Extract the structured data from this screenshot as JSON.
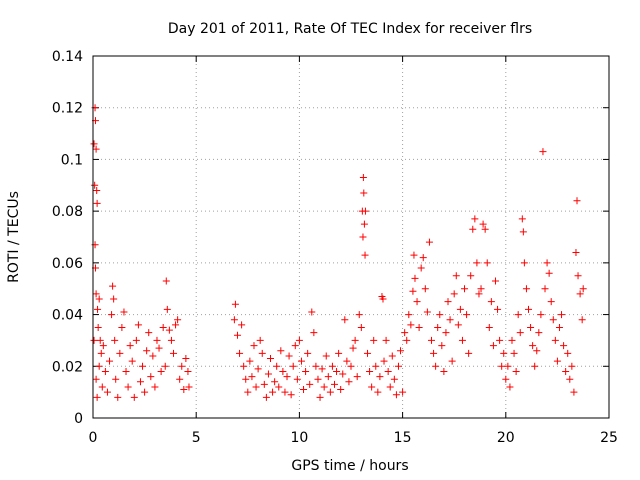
{
  "chart_data": {
    "type": "scatter",
    "title": "Day 201 of 2011, Rate Of TEC Index for receiver flrs",
    "xlabel": "GPS time / hours",
    "ylabel": "ROTI / TECUs",
    "xlim": [
      0,
      25
    ],
    "ylim": [
      0,
      0.14
    ],
    "xticks": [
      0,
      5,
      10,
      15,
      20,
      25
    ],
    "xtick_labels": [
      "0",
      "5",
      "10",
      "15",
      "20",
      "25"
    ],
    "yticks": [
      0,
      0.02,
      0.04,
      0.06,
      0.08,
      0.1,
      0.12,
      0.14
    ],
    "ytick_labels": [
      "0",
      "0.02",
      "0.04",
      "0.06",
      "0.08",
      "0.1",
      "0.12",
      "0.14"
    ],
    "grid": true,
    "marker": "+",
    "series": [
      {
        "name": "ROTI",
        "color": "#ff0000",
        "points": [
          [
            0.05,
            0.106
          ],
          [
            0.1,
            0.12
          ],
          [
            0.12,
            0.115
          ],
          [
            0.15,
            0.104
          ],
          [
            0.08,
            0.09
          ],
          [
            0.18,
            0.088
          ],
          [
            0.2,
            0.083
          ],
          [
            0.1,
            0.067
          ],
          [
            0.12,
            0.058
          ],
          [
            0.15,
            0.048
          ],
          [
            0.22,
            0.042
          ],
          [
            0.3,
            0.046
          ],
          [
            0.25,
            0.035
          ],
          [
            0.35,
            0.03
          ],
          [
            0.05,
            0.03
          ],
          [
            0.4,
            0.025
          ],
          [
            0.3,
            0.02
          ],
          [
            0.15,
            0.015
          ],
          [
            0.45,
            0.012
          ],
          [
            0.2,
            0.008
          ],
          [
            0.5,
            0.028
          ],
          [
            0.6,
            0.018
          ],
          [
            0.7,
            0.01
          ],
          [
            0.8,
            0.022
          ],
          [
            0.9,
            0.04
          ],
          [
            0.95,
            0.051
          ],
          [
            1.0,
            0.046
          ],
          [
            1.05,
            0.03
          ],
          [
            1.1,
            0.015
          ],
          [
            1.2,
            0.008
          ],
          [
            1.3,
            0.025
          ],
          [
            1.4,
            0.035
          ],
          [
            1.5,
            0.041
          ],
          [
            1.6,
            0.018
          ],
          [
            1.7,
            0.012
          ],
          [
            1.8,
            0.028
          ],
          [
            1.9,
            0.022
          ],
          [
            2.0,
            0.008
          ],
          [
            2.1,
            0.03
          ],
          [
            2.2,
            0.036
          ],
          [
            2.3,
            0.014
          ],
          [
            2.4,
            0.02
          ],
          [
            2.5,
            0.01
          ],
          [
            2.6,
            0.026
          ],
          [
            2.7,
            0.033
          ],
          [
            2.8,
            0.016
          ],
          [
            2.9,
            0.024
          ],
          [
            3.0,
            0.012
          ],
          [
            3.1,
            0.03
          ],
          [
            3.2,
            0.027
          ],
          [
            3.3,
            0.018
          ],
          [
            3.4,
            0.035
          ],
          [
            3.5,
            0.02
          ],
          [
            3.55,
            0.053
          ],
          [
            3.6,
            0.042
          ],
          [
            3.7,
            0.034
          ],
          [
            3.8,
            0.03
          ],
          [
            3.9,
            0.025
          ],
          [
            4.0,
            0.036
          ],
          [
            4.1,
            0.038
          ],
          [
            4.2,
            0.015
          ],
          [
            4.3,
            0.02
          ],
          [
            4.4,
            0.011
          ],
          [
            4.5,
            0.023
          ],
          [
            4.6,
            0.018
          ],
          [
            4.65,
            0.012
          ],
          [
            6.85,
            0.038
          ],
          [
            6.9,
            0.044
          ],
          [
            7.0,
            0.032
          ],
          [
            7.1,
            0.025
          ],
          [
            7.2,
            0.036
          ],
          [
            7.3,
            0.02
          ],
          [
            7.4,
            0.015
          ],
          [
            7.5,
            0.01
          ],
          [
            7.6,
            0.022
          ],
          [
            7.7,
            0.016
          ],
          [
            7.8,
            0.028
          ],
          [
            7.9,
            0.012
          ],
          [
            8.0,
            0.019
          ],
          [
            8.1,
            0.03
          ],
          [
            8.2,
            0.025
          ],
          [
            8.3,
            0.013
          ],
          [
            8.4,
            0.008
          ],
          [
            8.5,
            0.017
          ],
          [
            8.6,
            0.023
          ],
          [
            8.7,
            0.01
          ],
          [
            8.8,
            0.014
          ],
          [
            8.9,
            0.02
          ],
          [
            9.0,
            0.012
          ],
          [
            9.1,
            0.026
          ],
          [
            9.2,
            0.018
          ],
          [
            9.3,
            0.01
          ],
          [
            9.4,
            0.016
          ],
          [
            9.5,
            0.024
          ],
          [
            9.6,
            0.009
          ],
          [
            9.7,
            0.02
          ],
          [
            9.8,
            0.028
          ],
          [
            9.9,
            0.015
          ],
          [
            10.0,
            0.03
          ],
          [
            10.1,
            0.022
          ],
          [
            10.2,
            0.011
          ],
          [
            10.3,
            0.018
          ],
          [
            10.4,
            0.025
          ],
          [
            10.5,
            0.013
          ],
          [
            10.6,
            0.041
          ],
          [
            10.7,
            0.033
          ],
          [
            10.8,
            0.02
          ],
          [
            10.9,
            0.015
          ],
          [
            11.0,
            0.008
          ],
          [
            11.1,
            0.019
          ],
          [
            11.2,
            0.012
          ],
          [
            11.3,
            0.024
          ],
          [
            11.4,
            0.016
          ],
          [
            11.5,
            0.01
          ],
          [
            11.6,
            0.02
          ],
          [
            11.7,
            0.013
          ],
          [
            11.8,
            0.018
          ],
          [
            11.9,
            0.025
          ],
          [
            12.0,
            0.011
          ],
          [
            12.1,
            0.017
          ],
          [
            12.2,
            0.038
          ],
          [
            12.3,
            0.022
          ],
          [
            12.4,
            0.014
          ],
          [
            12.5,
            0.02
          ],
          [
            12.6,
            0.027
          ],
          [
            12.7,
            0.03
          ],
          [
            12.8,
            0.016
          ],
          [
            12.9,
            0.04
          ],
          [
            13.0,
            0.035
          ],
          [
            13.05,
            0.08
          ],
          [
            13.08,
            0.07
          ],
          [
            13.1,
            0.093
          ],
          [
            13.12,
            0.087
          ],
          [
            13.15,
            0.075
          ],
          [
            13.18,
            0.063
          ],
          [
            13.2,
            0.08
          ],
          [
            13.3,
            0.025
          ],
          [
            13.4,
            0.018
          ],
          [
            13.5,
            0.012
          ],
          [
            13.6,
            0.03
          ],
          [
            13.7,
            0.02
          ],
          [
            13.8,
            0.01
          ],
          [
            13.9,
            0.016
          ],
          [
            14.0,
            0.047
          ],
          [
            14.05,
            0.046
          ],
          [
            14.1,
            0.022
          ],
          [
            14.2,
            0.03
          ],
          [
            14.3,
            0.018
          ],
          [
            14.4,
            0.012
          ],
          [
            14.5,
            0.024
          ],
          [
            14.6,
            0.015
          ],
          [
            14.7,
            0.009
          ],
          [
            14.8,
            0.02
          ],
          [
            14.9,
            0.026
          ],
          [
            15.0,
            0.01
          ],
          [
            15.1,
            0.033
          ],
          [
            15.2,
            0.03
          ],
          [
            15.3,
            0.04
          ],
          [
            15.4,
            0.036
          ],
          [
            15.5,
            0.049
          ],
          [
            15.55,
            0.063
          ],
          [
            15.6,
            0.054
          ],
          [
            15.7,
            0.045
          ],
          [
            15.8,
            0.035
          ],
          [
            15.9,
            0.058
          ],
          [
            16.0,
            0.062
          ],
          [
            16.1,
            0.05
          ],
          [
            16.2,
            0.041
          ],
          [
            16.3,
            0.068
          ],
          [
            16.4,
            0.03
          ],
          [
            16.5,
            0.025
          ],
          [
            16.6,
            0.02
          ],
          [
            16.7,
            0.035
          ],
          [
            16.8,
            0.04
          ],
          [
            16.9,
            0.028
          ],
          [
            17.0,
            0.018
          ],
          [
            17.1,
            0.033
          ],
          [
            17.2,
            0.045
          ],
          [
            17.3,
            0.038
          ],
          [
            17.4,
            0.022
          ],
          [
            17.5,
            0.048
          ],
          [
            17.6,
            0.055
          ],
          [
            17.7,
            0.036
          ],
          [
            17.8,
            0.042
          ],
          [
            17.9,
            0.03
          ],
          [
            18.0,
            0.05
          ],
          [
            18.1,
            0.04
          ],
          [
            18.2,
            0.025
          ],
          [
            18.3,
            0.055
          ],
          [
            18.4,
            0.073
          ],
          [
            18.5,
            0.077
          ],
          [
            18.6,
            0.06
          ],
          [
            18.7,
            0.048
          ],
          [
            18.8,
            0.05
          ],
          [
            18.9,
            0.075
          ],
          [
            19.0,
            0.073
          ],
          [
            19.1,
            0.06
          ],
          [
            19.2,
            0.035
          ],
          [
            19.3,
            0.045
          ],
          [
            19.4,
            0.028
          ],
          [
            19.5,
            0.053
          ],
          [
            19.6,
            0.042
          ],
          [
            19.7,
            0.03
          ],
          [
            19.8,
            0.02
          ],
          [
            19.9,
            0.025
          ],
          [
            20.0,
            0.015
          ],
          [
            20.1,
            0.02
          ],
          [
            20.2,
            0.012
          ],
          [
            20.3,
            0.03
          ],
          [
            20.4,
            0.025
          ],
          [
            20.5,
            0.018
          ],
          [
            20.6,
            0.04
          ],
          [
            20.7,
            0.033
          ],
          [
            20.8,
            0.077
          ],
          [
            20.85,
            0.072
          ],
          [
            20.9,
            0.06
          ],
          [
            21.0,
            0.05
          ],
          [
            21.1,
            0.042
          ],
          [
            21.2,
            0.035
          ],
          [
            21.3,
            0.028
          ],
          [
            21.4,
            0.02
          ],
          [
            21.5,
            0.026
          ],
          [
            21.6,
            0.033
          ],
          [
            21.7,
            0.04
          ],
          [
            21.8,
            0.103
          ],
          [
            21.9,
            0.05
          ],
          [
            22.0,
            0.06
          ],
          [
            22.1,
            0.056
          ],
          [
            22.2,
            0.045
          ],
          [
            22.3,
            0.038
          ],
          [
            22.4,
            0.03
          ],
          [
            22.5,
            0.022
          ],
          [
            22.6,
            0.035
          ],
          [
            22.7,
            0.04
          ],
          [
            22.8,
            0.028
          ],
          [
            22.9,
            0.018
          ],
          [
            23.0,
            0.025
          ],
          [
            23.1,
            0.015
          ],
          [
            23.2,
            0.02
          ],
          [
            23.3,
            0.01
          ],
          [
            23.4,
            0.064
          ],
          [
            23.45,
            0.084
          ],
          [
            23.5,
            0.055
          ],
          [
            23.6,
            0.048
          ],
          [
            23.7,
            0.038
          ],
          [
            23.75,
            0.05
          ]
        ]
      }
    ]
  }
}
